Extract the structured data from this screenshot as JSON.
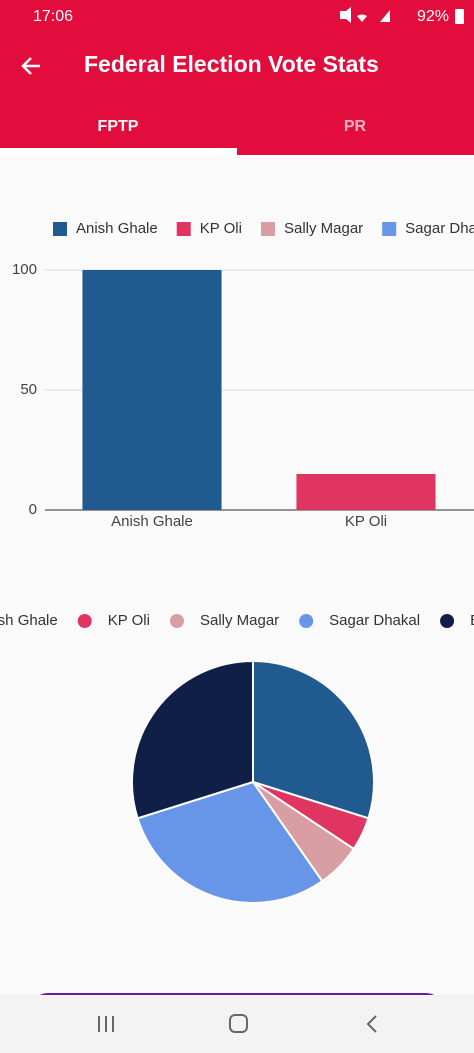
{
  "status_bar": {
    "time": "17:06",
    "battery": "92%"
  },
  "app_bar": {
    "title": "Federal Election Vote Stats"
  },
  "tabs": [
    "FPTP",
    "PR"
  ],
  "chart_data": [
    {
      "type": "bar",
      "categories": [
        "Anish Ghale",
        "KP Oli"
      ],
      "values": [
        100,
        15
      ],
      "colors": [
        "#215a8f",
        "#e03561"
      ],
      "ylim": [
        0,
        100
      ],
      "yticks": [
        0,
        50,
        100
      ],
      "grid": true,
      "legend": [
        {
          "name": "Anish Ghale",
          "color": "#215a8f"
        },
        {
          "name": "KP Oli",
          "color": "#e03561"
        },
        {
          "name": "Sally Magar",
          "color": "#d89ea3"
        },
        {
          "name": "Sagar Dhakal",
          "color": "#6796e8"
        }
      ]
    },
    {
      "type": "pie",
      "categories": [
        "Anish Ghale",
        "KP Oli",
        "Sally Magar",
        "Sagar Dhakal",
        "Balen"
      ],
      "values": [
        100,
        15,
        20,
        100,
        100
      ],
      "colors": [
        "#215a8f",
        "#e03561",
        "#d89ea3",
        "#6796e8",
        "#101f47"
      ]
    }
  ]
}
